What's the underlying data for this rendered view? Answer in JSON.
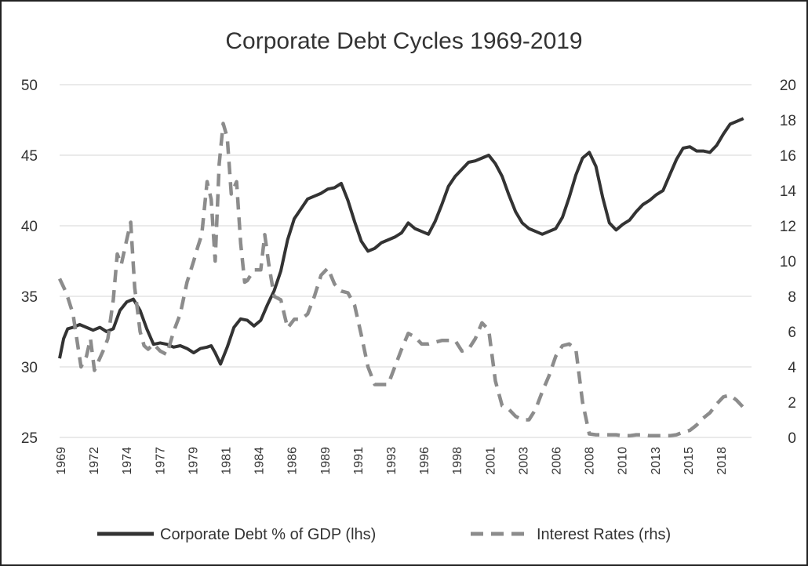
{
  "chart_data": {
    "type": "line",
    "title": "Corporate Debt Cycles 1969-2019",
    "y_left": {
      "min": 25,
      "max": 50,
      "ticks": [
        "25",
        "30",
        "35",
        "40",
        "45",
        "50"
      ]
    },
    "y_right": {
      "min": 0,
      "max": 20,
      "ticks": [
        "0",
        "2",
        "4",
        "6",
        "8",
        "10",
        "12",
        "14",
        "16",
        "18",
        "20"
      ]
    },
    "x_range": [
      1969,
      2020.6
    ],
    "x_ticks": [
      "1969",
      "1972",
      "1974",
      "1977",
      "1979",
      "1981",
      "1984",
      "1986",
      "1989",
      "1991",
      "1993",
      "1996",
      "1998",
      "2001",
      "2003",
      "2006",
      "2008",
      "2010",
      "2013",
      "2015",
      "2018"
    ],
    "grid": true,
    "legend_position": "bottom",
    "series": [
      {
        "name": "Corporate Debt % of GDP (lhs)",
        "axis": "left",
        "color": "#333333",
        "style": "solid",
        "x": [
          1969.0,
          1969.3,
          1969.6,
          1970.0,
          1970.5,
          1971.0,
          1971.5,
          1972.0,
          1972.5,
          1973.0,
          1973.5,
          1974.0,
          1974.5,
          1975.0,
          1975.5,
          1976.0,
          1976.5,
          1977.0,
          1977.5,
          1978.0,
          1978.5,
          1979.0,
          1979.5,
          1980.0,
          1980.3,
          1980.6,
          1981.0,
          1981.5,
          1982.0,
          1982.5,
          1983.0,
          1983.5,
          1984.0,
          1984.5,
          1985.0,
          1985.5,
          1986.0,
          1986.5,
          1987.0,
          1987.5,
          1988.0,
          1988.5,
          1989.0,
          1989.5,
          1990.0,
          1990.5,
          1991.0,
          1991.5,
          1992.0,
          1992.5,
          1993.0,
          1993.5,
          1994.0,
          1994.5,
          1995.0,
          1995.5,
          1996.0,
          1996.5,
          1997.0,
          1997.5,
          1998.0,
          1998.5,
          1999.0,
          1999.5,
          2000.0,
          2000.5,
          2001.0,
          2001.5,
          2002.0,
          2002.5,
          2003.0,
          2003.5,
          2004.0,
          2004.5,
          2005.0,
          2005.5,
          2006.0,
          2006.5,
          2007.0,
          2007.5,
          2008.0,
          2008.5,
          2009.0,
          2009.5,
          2010.0,
          2010.5,
          2011.0,
          2011.5,
          2012.0,
          2012.5,
          2013.0,
          2013.5,
          2014.0,
          2014.5,
          2015.0,
          2015.5,
          2016.0,
          2016.5,
          2017.0,
          2017.5,
          2018.0,
          2018.5,
          2019.0,
          2019.5,
          2020.0
        ],
        "values": [
          30.6,
          32.0,
          32.7,
          32.8,
          33.0,
          32.8,
          32.6,
          32.8,
          32.5,
          32.7,
          34.0,
          34.6,
          34.8,
          34.0,
          32.7,
          31.6,
          31.7,
          31.6,
          31.4,
          31.5,
          31.3,
          31.0,
          31.3,
          31.4,
          31.5,
          31.0,
          30.2,
          31.4,
          32.8,
          33.4,
          33.3,
          32.9,
          33.3,
          34.4,
          35.4,
          36.8,
          39.0,
          40.5,
          41.2,
          41.9,
          42.1,
          42.3,
          42.6,
          42.7,
          43.0,
          41.8,
          40.3,
          38.9,
          38.2,
          38.4,
          38.8,
          39.0,
          39.2,
          39.5,
          40.2,
          39.8,
          39.6,
          39.4,
          40.3,
          41.5,
          42.8,
          43.5,
          44.0,
          44.5,
          44.6,
          44.8,
          45.0,
          44.4,
          43.5,
          42.2,
          41.0,
          40.2,
          39.8,
          39.6,
          39.4,
          39.6,
          39.8,
          40.6,
          42.0,
          43.6,
          44.8,
          45.2,
          44.2,
          42.0,
          40.2,
          39.7,
          40.1,
          40.4,
          41.0,
          41.5,
          41.8,
          42.2,
          42.5,
          43.6,
          44.7,
          45.5,
          45.6,
          45.3,
          45.3,
          45.2,
          45.7,
          46.5,
          47.2,
          47.4,
          47.6
        ]
      },
      {
        "name": "Interest Rates (rhs)",
        "axis": "right",
        "color": "#8c8c8c",
        "style": "dashed",
        "x": [
          1969.0,
          1969.5,
          1970.0,
          1970.3,
          1970.6,
          1971.0,
          1971.3,
          1971.6,
          1972.0,
          1972.3,
          1972.6,
          1973.0,
          1973.3,
          1973.6,
          1974.0,
          1974.3,
          1974.6,
          1975.0,
          1975.3,
          1975.6,
          1976.0,
          1976.5,
          1977.0,
          1977.5,
          1978.0,
          1978.5,
          1979.0,
          1979.3,
          1979.6,
          1980.0,
          1980.3,
          1980.6,
          1980.9,
          1981.2,
          1981.5,
          1981.8,
          1982.2,
          1982.5,
          1982.8,
          1983.0,
          1983.5,
          1984.0,
          1984.3,
          1984.6,
          1985.0,
          1985.5,
          1986.0,
          1986.5,
          1987.0,
          1987.5,
          1988.0,
          1988.5,
          1989.0,
          1989.5,
          1990.0,
          1990.5,
          1991.0,
          1991.5,
          1992.0,
          1992.5,
          1993.0,
          1993.5,
          1994.0,
          1994.5,
          1995.0,
          1995.5,
          1996.0,
          1996.5,
          1997.0,
          1997.5,
          1998.0,
          1998.5,
          1999.0,
          1999.5,
          2000.0,
          2000.5,
          2001.0,
          2001.5,
          2002.0,
          2002.5,
          2003.0,
          2003.5,
          2004.0,
          2004.5,
          2005.0,
          2005.5,
          2006.0,
          2006.5,
          2007.0,
          2007.5,
          2008.0,
          2008.5,
          2009.0,
          2009.5,
          2010.0,
          2010.5,
          2011.0,
          2011.5,
          2012.0,
          2012.5,
          2013.0,
          2013.5,
          2014.0,
          2014.5,
          2015.0,
          2015.5,
          2016.0,
          2016.5,
          2017.0,
          2017.5,
          2018.0,
          2018.5,
          2019.0,
          2019.5,
          2020.0
        ],
        "values": [
          9.0,
          8.2,
          7.0,
          5.5,
          4.0,
          4.6,
          5.6,
          3.8,
          4.5,
          5.0,
          5.6,
          7.8,
          10.4,
          9.8,
          11.2,
          12.2,
          8.5,
          6.0,
          5.2,
          5.0,
          5.3,
          4.9,
          4.7,
          6.0,
          7.0,
          8.8,
          10.0,
          10.8,
          11.5,
          14.5,
          13.5,
          10.0,
          15.5,
          17.8,
          17.0,
          13.8,
          14.5,
          11.0,
          8.8,
          8.9,
          9.5,
          9.5,
          11.5,
          9.8,
          8.0,
          7.8,
          6.2,
          6.7,
          6.7,
          7.0,
          8.0,
          9.2,
          9.6,
          8.7,
          8.3,
          8.2,
          7.5,
          5.8,
          4.0,
          3.0,
          3.0,
          3.0,
          4.0,
          5.0,
          5.9,
          5.7,
          5.3,
          5.3,
          5.4,
          5.5,
          5.5,
          5.5,
          4.9,
          5.0,
          5.6,
          6.5,
          6.1,
          3.2,
          1.8,
          1.6,
          1.2,
          1.0,
          1.0,
          1.6,
          2.6,
          3.5,
          4.6,
          5.2,
          5.3,
          5.0,
          2.0,
          0.2,
          0.15,
          0.15,
          0.15,
          0.15,
          0.1,
          0.1,
          0.15,
          0.15,
          0.1,
          0.1,
          0.1,
          0.1,
          0.15,
          0.3,
          0.4,
          0.7,
          1.1,
          1.4,
          1.9,
          2.3,
          2.4,
          2.1,
          1.7
        ]
      }
    ]
  }
}
